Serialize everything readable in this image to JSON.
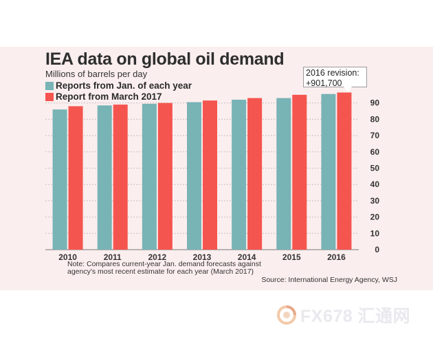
{
  "chart_data": {
    "type": "bar",
    "title": "IEA data on global oil demand",
    "subtitle": "Millions of barrels per day",
    "categories": [
      "2010",
      "2011",
      "2012",
      "2013",
      "2014",
      "2015",
      "2016"
    ],
    "series": [
      {
        "name": "Reports from Jan. of each year",
        "color": "#78b3b5",
        "values": [
          86.0,
          88.5,
          89.5,
          90.5,
          92.0,
          93.0,
          95.5
        ]
      },
      {
        "name": "Report from March 2017",
        "color": "#f5554f",
        "values": [
          88.0,
          89.0,
          90.0,
          91.5,
          93.0,
          95.0,
          96.4
        ]
      }
    ],
    "ylim": [
      0,
      100
    ],
    "yticks": [
      0,
      10,
      20,
      30,
      40,
      50,
      60,
      70,
      80,
      90
    ],
    "y_axis_side": "right",
    "grid": "horizontal-dashed",
    "annotation": {
      "line1": "2016 revision:",
      "line2": "+901,700"
    },
    "note_line1": "Note: Compares current-year Jan. demand forecasts against",
    "note_line2": "agency's most recent estimate for each year (March 2017)",
    "source": "Source: International Energy Agency, WSJ"
  },
  "watermark": {
    "text": "FX678 汇通网",
    "icon": "fx678-logo-icon"
  }
}
